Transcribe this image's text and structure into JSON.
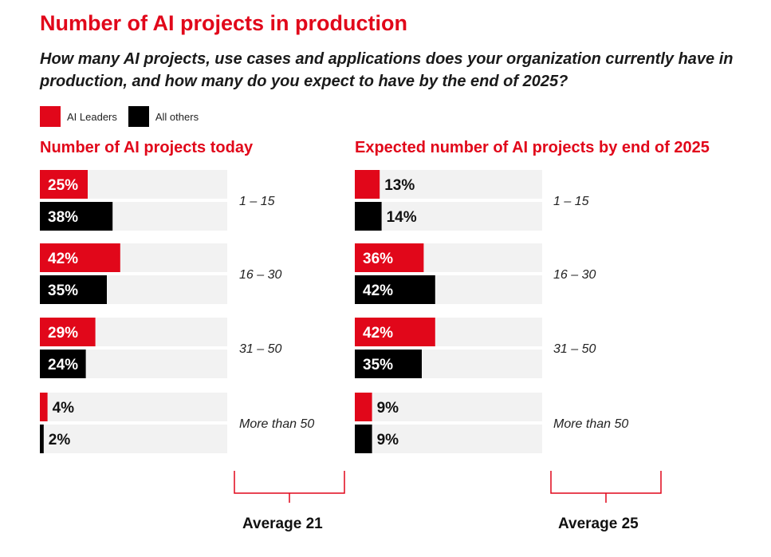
{
  "title": "Number of AI projects in production",
  "subtitle": "How many AI projects, use cases and applications does your organization currently have in production, and how many do you expect to have by the end of 2025?",
  "legend": [
    {
      "name": "AI Leaders",
      "color": "#e1071a"
    },
    {
      "name": "All others",
      "color": "#000000"
    }
  ],
  "chart_data": [
    {
      "type": "bar",
      "orientation": "horizontal",
      "title": "Number of AI projects today",
      "categories": [
        "1 – 15",
        "16 – 30",
        "31 – 50",
        "More than 50"
      ],
      "series": [
        {
          "name": "AI Leaders",
          "values": [
            25,
            42,
            29,
            4
          ]
        },
        {
          "name": "All others",
          "values": [
            38,
            35,
            24,
            2
          ]
        }
      ],
      "unit": "%",
      "xlim": [
        0,
        100
      ],
      "average_label": "Average 21"
    },
    {
      "type": "bar",
      "orientation": "horizontal",
      "title": "Expected number of AI projects by end of 2025",
      "categories": [
        "1 – 15",
        "16 – 30",
        "31 – 50",
        "More than 50"
      ],
      "series": [
        {
          "name": "AI Leaders",
          "values": [
            13,
            36,
            42,
            9
          ]
        },
        {
          "name": "All others",
          "values": [
            14,
            42,
            35,
            9
          ]
        }
      ],
      "unit": "%",
      "xlim": [
        0,
        100
      ],
      "average_label": "Average 25"
    }
  ]
}
